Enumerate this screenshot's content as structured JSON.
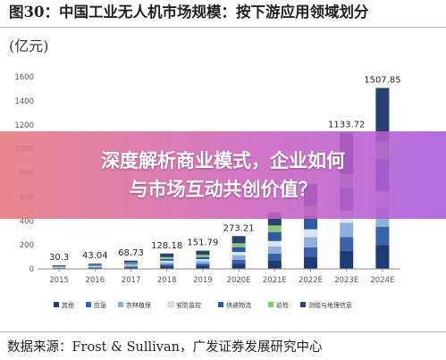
{
  "header": {
    "title": "图30：中国工业无人机市场规模：按下游应用领域划分",
    "unit": "(亿元)"
  },
  "footer": {
    "source": "数据来源：Frost & Sullivan，广发证券发展研究中心"
  },
  "banner": {
    "line1": "深度解析商业模式，企业如何",
    "line2": "与市场互动共创价值？",
    "colors": [
      "#e8787d",
      "#cd64be",
      "#aa5adc"
    ]
  },
  "chart_data": {
    "type": "bar",
    "stacked": true,
    "categories": [
      "2015",
      "2016",
      "2017",
      "2018",
      "2019",
      "2020E",
      "2021E",
      "2022E",
      "2023E",
      "2024E"
    ],
    "totals": [
      30.3,
      43.04,
      68.73,
      128.18,
      151.79,
      273.21,
      null,
      null,
      1133.72,
      1507.85
    ],
    "total_labels": [
      "30.3",
      "43.04",
      "68.73",
      "128.18",
      "151.79",
      "273.21",
      "",
      "",
      "1133.72",
      "1507.85"
    ],
    "ylim": [
      0,
      1600
    ],
    "yticks": [
      0,
      200,
      400,
      600,
      800,
      1000,
      1200,
      1400,
      1600
    ],
    "grid": false,
    "legend_position": "bottom",
    "series": [
      {
        "name": "其他",
        "color": "#1f3b73",
        "values": [
          6,
          8,
          12,
          22,
          26,
          44,
          72,
          100,
          150,
          200
        ]
      },
      {
        "name": "应急",
        "color": "#3a62a8",
        "values": [
          3,
          5,
          8,
          15,
          18,
          32,
          55,
          80,
          115,
          150
        ]
      },
      {
        "name": "农林植保",
        "color": "#8fb0d8",
        "values": [
          4,
          6,
          10,
          18,
          22,
          38,
          60,
          85,
          120,
          160
        ]
      },
      {
        "name": "安防监控",
        "color": "#d9e4f2",
        "values": [
          3,
          4,
          7,
          13,
          15,
          27,
          45,
          65,
          100,
          135
        ]
      },
      {
        "name": "快递物流",
        "color": "#2f5aa0",
        "values": [
          3,
          5,
          8,
          15,
          18,
          40,
          75,
          115,
          195,
          270
        ]
      },
      {
        "name": "巡检",
        "color": "#8cc47a",
        "values": [
          4,
          5,
          8,
          15,
          18,
          32,
          55,
          75,
          110,
          140
        ]
      },
      {
        "name": "测绘与地理信息",
        "color": "#28416f",
        "values": [
          7.3,
          10.04,
          15.73,
          30.18,
          34.79,
          60.21,
          108,
          190,
          343.72,
          452.85
        ]
      }
    ]
  }
}
